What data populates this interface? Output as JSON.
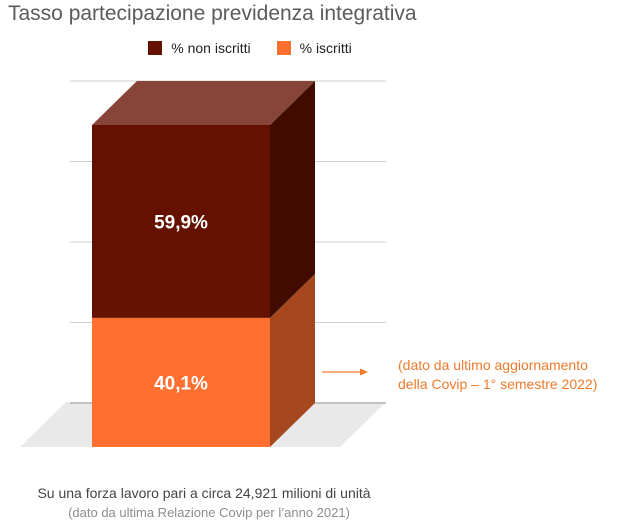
{
  "chart_data": {
    "type": "bar",
    "stacked": true,
    "three_d": true,
    "title": "Tasso partecipazione previdenza integrativa",
    "xlabel": "",
    "ylabel": "",
    "ylim": [
      0,
      100
    ],
    "grid": true,
    "legend_position": "top",
    "categories": [
      ""
    ],
    "series": [
      {
        "name": "% iscritti",
        "values": [
          40.1
        ],
        "label": "40,1%",
        "color": "#ff6f30"
      },
      {
        "name": "% non iscritti",
        "values": [
          59.9
        ],
        "label": "59,9%",
        "color": "#641100"
      }
    ]
  },
  "note": {
    "line1": "(dato da ultimo aggiornamento",
    "line2": "della Covip – 1° semestre 2022)",
    "color": "#f07a2c"
  },
  "footer": {
    "main": "Su una forza lavoro pari a circa 24,921 milioni di unità",
    "sub": "(dato da ultima Relazione Covip per l’anno 2021)"
  }
}
